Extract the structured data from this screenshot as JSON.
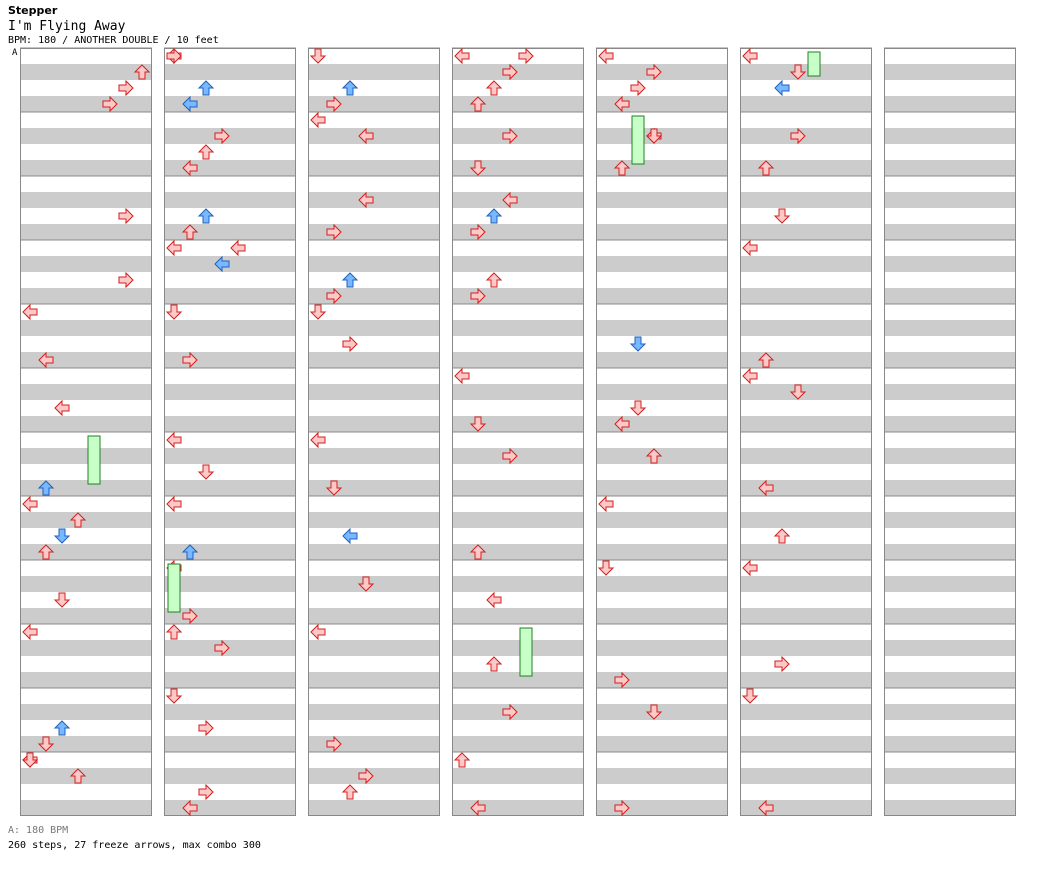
{
  "header": {
    "app": "Stepper",
    "song": "I'm Flying Away",
    "info": "BPM: 180 / ANOTHER DOUBLE / 10 feet",
    "marker": "A"
  },
  "footer": {
    "bpm": "A: 180 BPM",
    "stats": "260 steps, 27 freeze arrows, max combo 300"
  },
  "colors": {
    "stripe": "#cccccc",
    "line": "#888888",
    "red_fill": "#ffc8c8",
    "red_stroke": "#d02020",
    "blue_fill": "#78b8ff",
    "blue_stroke": "#2060c0",
    "freeze_fill": "#c8ffc8",
    "freeze_stroke": "#208020"
  },
  "chart_data": {
    "type": "step-chart",
    "columns": 7,
    "measures_per_column": 12,
    "lanes": [
      "L",
      "D",
      "U",
      "R",
      "L",
      "D",
      "U",
      "R"
    ],
    "notes": [
      [
        0,
        0,
        5,
        "R",
        0
      ],
      [
        0,
        0,
        6,
        "R",
        0
      ],
      [
        0,
        0,
        7,
        "U",
        0
      ],
      [
        1,
        0,
        0,
        "L",
        0
      ],
      [
        1,
        0,
        0,
        "R",
        0
      ],
      [
        1,
        0,
        1,
        "L",
        1
      ],
      [
        1,
        0,
        2,
        "U",
        1
      ],
      [
        1,
        1,
        1,
        "L",
        0
      ],
      [
        1,
        1,
        2,
        "U",
        0
      ],
      [
        1,
        1,
        3,
        "R",
        0
      ],
      [
        1,
        2,
        1,
        "U",
        0
      ],
      [
        1,
        2,
        2,
        "U",
        1
      ],
      [
        1,
        3,
        0,
        "L",
        0
      ],
      [
        1,
        3,
        3,
        "L",
        1
      ],
      [
        1,
        3,
        4,
        "L",
        0
      ],
      [
        1,
        4,
        0,
        "D",
        0
      ],
      [
        1,
        4,
        1,
        "R",
        0
      ],
      [
        2,
        0,
        0,
        "D",
        0
      ],
      [
        2,
        0,
        1,
        "R",
        0
      ],
      [
        2,
        0,
        2,
        "U",
        0
      ],
      [
        2,
        0,
        2,
        "U",
        1
      ],
      [
        2,
        1,
        0,
        "L",
        0
      ],
      [
        2,
        1,
        3,
        "L",
        0
      ],
      [
        2,
        2,
        3,
        "L",
        0
      ],
      [
        2,
        2,
        1,
        "R",
        0
      ],
      [
        2,
        3,
        1,
        "R",
        0
      ],
      [
        2,
        3,
        2,
        "U",
        1
      ],
      [
        2,
        4,
        0,
        "D",
        0
      ],
      [
        2,
        4,
        2,
        "R",
        0
      ],
      [
        3,
        0,
        0,
        "L",
        0
      ],
      [
        3,
        0,
        1,
        "U",
        0
      ],
      [
        3,
        0,
        2,
        "U",
        0
      ],
      [
        3,
        0,
        3,
        "R",
        0
      ],
      [
        3,
        0,
        4,
        "R",
        0
      ],
      [
        3,
        1,
        1,
        "D",
        0
      ],
      [
        3,
        1,
        3,
        "R",
        0
      ],
      [
        3,
        2,
        1,
        "R",
        0
      ],
      [
        3,
        2,
        2,
        "U",
        1
      ],
      [
        3,
        2,
        3,
        "L",
        0
      ],
      [
        3,
        3,
        2,
        "U",
        0
      ],
      [
        3,
        3,
        1,
        "R",
        0
      ],
      [
        4,
        0,
        0,
        "L",
        0
      ],
      [
        4,
        0,
        1,
        "L",
        0
      ],
      [
        4,
        0,
        2,
        "R",
        0
      ],
      [
        4,
        0,
        3,
        "R",
        0
      ],
      [
        4,
        1,
        1,
        "U",
        0
      ],
      [
        4,
        1,
        3,
        "L",
        0
      ],
      [
        4,
        1,
        3,
        "D",
        0
      ],
      [
        5,
        0,
        0,
        "L",
        0
      ],
      [
        5,
        0,
        3,
        "D",
        0
      ],
      [
        5,
        0,
        2,
        "L",
        1
      ],
      [
        5,
        1,
        1,
        "U",
        0
      ],
      [
        5,
        1,
        3,
        "R",
        0
      ],
      [
        5,
        2,
        2,
        "D",
        0
      ],
      [
        5,
        3,
        0,
        "L",
        0
      ],
      [
        0,
        2,
        6,
        "R",
        0
      ],
      [
        0,
        3,
        6,
        "R",
        0
      ],
      [
        0,
        4,
        0,
        "L",
        0
      ],
      [
        0,
        4,
        1,
        "L",
        0
      ],
      [
        0,
        5,
        2,
        "L",
        0
      ],
      [
        0,
        6,
        1,
        "U",
        1
      ],
      [
        0,
        7,
        0,
        "L",
        0
      ],
      [
        0,
        7,
        1,
        "U",
        0
      ],
      [
        0,
        7,
        2,
        "D",
        1
      ],
      [
        0,
        7,
        3,
        "U",
        0
      ],
      [
        0,
        8,
        2,
        "D",
        0
      ],
      [
        0,
        9,
        0,
        "L",
        0
      ],
      [
        0,
        10,
        1,
        "D",
        0
      ],
      [
        0,
        10,
        2,
        "U",
        1
      ],
      [
        0,
        11,
        0,
        "L",
        0
      ],
      [
        0,
        11,
        3,
        "U",
        0
      ],
      [
        0,
        11,
        0,
        "D",
        0
      ],
      [
        1,
        6,
        0,
        "L",
        0
      ],
      [
        1,
        6,
        2,
        "D",
        0
      ],
      [
        1,
        7,
        0,
        "L",
        0
      ],
      [
        1,
        7,
        1,
        "U",
        1
      ],
      [
        1,
        8,
        0,
        "L",
        0
      ],
      [
        1,
        8,
        1,
        "R",
        0
      ],
      [
        1,
        9,
        0,
        "U",
        0
      ],
      [
        1,
        9,
        3,
        "R",
        0
      ],
      [
        1,
        10,
        0,
        "D",
        0
      ],
      [
        1,
        10,
        2,
        "R",
        0
      ],
      [
        1,
        11,
        1,
        "L",
        0
      ],
      [
        1,
        11,
        2,
        "R",
        0
      ],
      [
        2,
        6,
        0,
        "L",
        0
      ],
      [
        2,
        6,
        1,
        "D",
        0
      ],
      [
        2,
        7,
        2,
        "L",
        1
      ],
      [
        2,
        8,
        3,
        "D",
        0
      ],
      [
        2,
        9,
        0,
        "L",
        0
      ],
      [
        2,
        10,
        1,
        "R",
        0
      ],
      [
        2,
        11,
        2,
        "U",
        0
      ],
      [
        2,
        11,
        3,
        "R",
        0
      ],
      [
        3,
        5,
        0,
        "L",
        0
      ],
      [
        3,
        5,
        1,
        "D",
        0
      ],
      [
        3,
        6,
        3,
        "R",
        0
      ],
      [
        3,
        7,
        1,
        "U",
        0
      ],
      [
        3,
        8,
        2,
        "L",
        0
      ],
      [
        3,
        9,
        2,
        "U",
        0
      ],
      [
        3,
        10,
        3,
        "R",
        0
      ],
      [
        3,
        11,
        0,
        "U",
        0
      ],
      [
        3,
        11,
        1,
        "L",
        0
      ],
      [
        4,
        4,
        2,
        "D",
        1
      ],
      [
        4,
        5,
        1,
        "L",
        0
      ],
      [
        4,
        5,
        2,
        "D",
        0
      ],
      [
        4,
        6,
        3,
        "U",
        0
      ],
      [
        4,
        7,
        0,
        "L",
        0
      ],
      [
        4,
        8,
        0,
        "D",
        0
      ],
      [
        4,
        9,
        1,
        "R",
        0
      ],
      [
        4,
        10,
        3,
        "D",
        0
      ],
      [
        4,
        11,
        1,
        "R",
        0
      ],
      [
        5,
        4,
        1,
        "U",
        0
      ],
      [
        5,
        5,
        0,
        "L",
        0
      ],
      [
        5,
        5,
        3,
        "D",
        0
      ],
      [
        5,
        6,
        1,
        "L",
        0
      ],
      [
        5,
        7,
        2,
        "U",
        0
      ],
      [
        5,
        8,
        0,
        "L",
        0
      ],
      [
        5,
        9,
        2,
        "R",
        0
      ],
      [
        5,
        10,
        0,
        "D",
        0
      ],
      [
        5,
        11,
        1,
        "L",
        0
      ]
    ]
  }
}
